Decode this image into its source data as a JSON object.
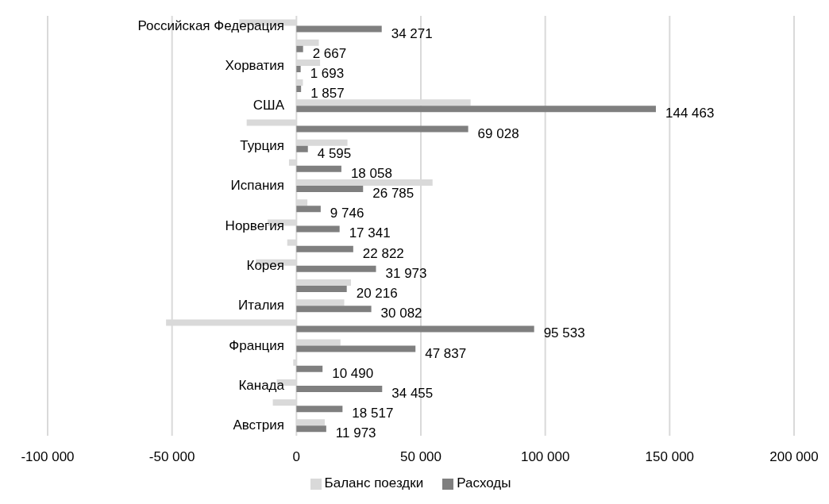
{
  "chart_data": {
    "type": "bar",
    "orientation": "horizontal",
    "categories": [
      "Российская Федерация",
      null,
      "Хорватия",
      null,
      "США",
      null,
      "Турция",
      null,
      "Испания",
      null,
      "Норвегия",
      null,
      "Корея",
      null,
      "Италия",
      null,
      "Франция",
      null,
      "Канада",
      null,
      "Австрия"
    ],
    "series": [
      {
        "name": "Баланс поездки",
        "color": "#d9d9d9",
        "values": [
          -23000,
          9000,
          9500,
          2600,
          70000,
          -20000,
          20500,
          -3000,
          54700,
          4400,
          -11600,
          -3700,
          -16300,
          21900,
          19200,
          -52400,
          17700,
          -1300,
          -7900,
          -9500,
          11400
        ]
      },
      {
        "name": "Расходы",
        "color": "#7f7f7f",
        "values": [
          34271,
          2667,
          1693,
          1857,
          144463,
          69028,
          4595,
          18058,
          26785,
          9746,
          17341,
          22822,
          31973,
          20216,
          30082,
          95533,
          47837,
          10490,
          34455,
          18517,
          11973
        ],
        "value_labels": [
          "34 271",
          "2 667",
          "1 693",
          "1 857",
          "144 463",
          "69 028",
          "4 595",
          "18 058",
          "26 785",
          "9 746",
          "17 341",
          "22 822",
          "31 973",
          "20 216",
          "30 082",
          "95 533",
          "47 837",
          "10 490",
          "34 455",
          "18 517",
          "11 973"
        ]
      }
    ],
    "xlim": [
      -100000,
      200000
    ],
    "xticks": [
      {
        "value": -100000,
        "label": "-100 000"
      },
      {
        "value": -50000,
        "label": "-50 000"
      },
      {
        "value": 0,
        "label": "0"
      },
      {
        "value": 50000,
        "label": "50 000"
      },
      {
        "value": 100000,
        "label": "100 000"
      },
      {
        "value": 150000,
        "label": "150 000"
      },
      {
        "value": 200000,
        "label": "200 000"
      }
    ],
    "grid": "x",
    "legend": "bottom"
  }
}
